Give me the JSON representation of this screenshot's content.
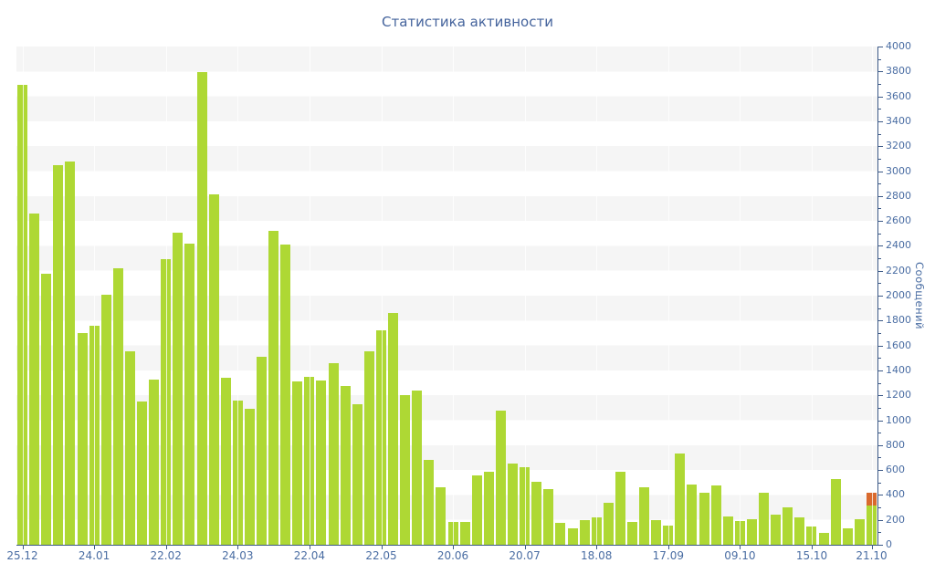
{
  "title": "Статистика активности",
  "colors": {
    "background": "#ffffff",
    "band_gray": "#f5f5f5",
    "band_white": "#ffffff",
    "axis_line": "#3d5a87",
    "tick_text": "#4a6da3",
    "title_text": "#44639c",
    "bar_green": "#aed834",
    "bar_orange": "#d96a2e"
  },
  "chart_data": {
    "type": "bar",
    "title": "Статистика активности",
    "ylabel": "Сообщений",
    "xlabel": "",
    "ylim": [
      0,
      4000
    ],
    "y_tick_step": 200,
    "y_minor_tick_step": 100,
    "y_tick_labels": [
      "0",
      "200",
      "400",
      "600",
      "800",
      "1000",
      "1200",
      "1400",
      "1600",
      "1800",
      "2000",
      "2200",
      "2400",
      "2600",
      "2800",
      "3000",
      "3200",
      "3400",
      "3600",
      "3800",
      "4000"
    ],
    "legend": "none",
    "grid": "horizontal-bands-alternating",
    "y_axis_side": "right",
    "bar_color": "#aed834",
    "highlight_color": "#d96a2e",
    "x_tick_labels": [
      "25.12",
      "24.01",
      "22.02",
      "24.03",
      "22.04",
      "22.05",
      "20.06",
      "20.07",
      "18.08",
      "17.09",
      "09.10",
      "15.10",
      "21.10"
    ],
    "x_tick_bar_indices": [
      0,
      6,
      12,
      18,
      24,
      30,
      36,
      42,
      48,
      54,
      60,
      66,
      71
    ],
    "values": [
      3695,
      2660,
      2175,
      3045,
      3080,
      1700,
      1755,
      2010,
      2220,
      1555,
      1150,
      1330,
      2290,
      2505,
      2420,
      3795,
      2815,
      1340,
      1160,
      1095,
      1510,
      2520,
      2410,
      1315,
      1345,
      1320,
      1460,
      1275,
      1130,
      1555,
      1725,
      1860,
      1200,
      1240,
      685,
      460,
      180,
      180,
      560,
      585,
      1075,
      650,
      625,
      505,
      450,
      175,
      130,
      200,
      220,
      340,
      585,
      185,
      460,
      200,
      155,
      735,
      485,
      420,
      475,
      225,
      190,
      205,
      415,
      245,
      300,
      220,
      150,
      95,
      530,
      130,
      205,
      315
    ],
    "stacked_segment": {
      "bar_index": 71,
      "value": 100,
      "color": "#d96a2e"
    }
  }
}
